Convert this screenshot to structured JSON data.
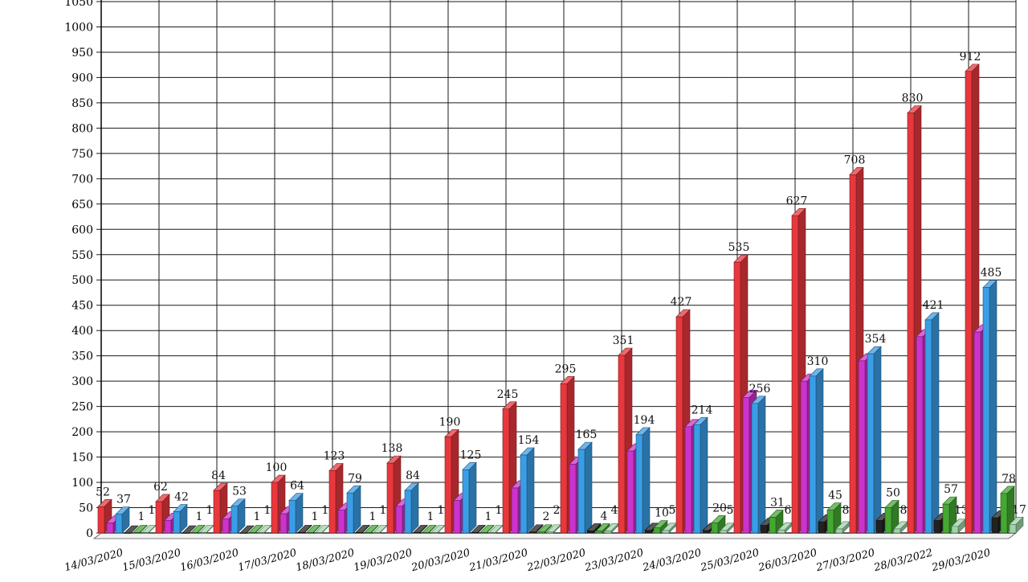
{
  "chart_data": {
    "type": "bar",
    "title": "",
    "xlabel": "",
    "ylabel": "",
    "ylim": [
      0,
      1050
    ],
    "y_ticks": [
      0,
      50,
      100,
      150,
      200,
      250,
      300,
      350,
      400,
      450,
      500,
      550,
      600,
      650,
      700,
      750,
      800,
      850,
      900,
      950,
      1000,
      1050
    ],
    "grid": true,
    "categories": [
      "14/03/2020",
      "15/03/2020",
      "16/03/2020",
      "17/03/2020",
      "18/03/2020",
      "19/03/2020",
      "20/03/2020",
      "21/03/2020",
      "22/03/2020",
      "23/03/2020",
      "24/03/2020",
      "25/03/2020",
      "26/03/2020",
      "27/03/2020",
      "28/03/2022",
      "29/03/2020"
    ],
    "series": [
      {
        "color": "#e8383d",
        "values": [
          52,
          62,
          84,
          100,
          123,
          138,
          190,
          245,
          295,
          351,
          427,
          535,
          627,
          708,
          830,
          912
        ]
      },
      {
        "color": "#cc33cc",
        "values": [
          20,
          25,
          28,
          38,
          45,
          53,
          64,
          89,
          136,
          162,
          210,
          268,
          300,
          340,
          388,
          397
        ]
      },
      {
        "color": "#3a9ee6",
        "values": [
          37,
          42,
          53,
          64,
          79,
          84,
          125,
          154,
          165,
          194,
          214,
          256,
          310,
          354,
          421,
          485
        ]
      },
      {
        "color": "#222222",
        "values": [
          0,
          0,
          0,
          1,
          1,
          1,
          1,
          2,
          4,
          5,
          5,
          15,
          22,
          25,
          25,
          30
        ]
      },
      {
        "color": "#44a833",
        "values": [
          1,
          1,
          1,
          1,
          1,
          1,
          1,
          2,
          4,
          10,
          20,
          31,
          45,
          50,
          57,
          78
        ]
      },
      {
        "color": "#9fd4a8",
        "values": [
          1,
          1,
          1,
          1,
          1,
          1,
          1,
          2,
          4,
          5,
          5,
          6,
          8,
          8,
          13,
          17
        ]
      }
    ]
  }
}
